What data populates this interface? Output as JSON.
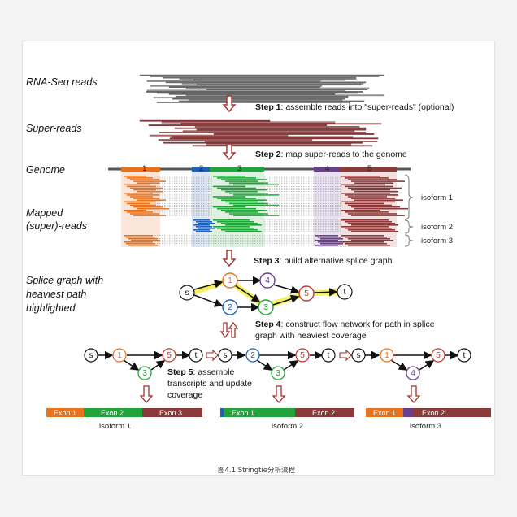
{
  "labels": {
    "rnaseq": "RNA-Seq reads",
    "superreads": "Super-reads",
    "genome": "Genome",
    "mapped1": "Mapped",
    "mapped2": "(super)-reads",
    "splice1": "Splice graph with",
    "splice2": "heaviest path",
    "splice3": "highlighted"
  },
  "steps": {
    "s1_head": "Step 1",
    "s1_text": ": assemble reads into \"super-reads\" (optional)",
    "s2_head": "Step 2",
    "s2_text": ": map super-reads to the genome",
    "s3_head": "Step 3",
    "s3_text": ": build alternative splice graph",
    "s4_head": "Step 4",
    "s4_text": ": construct flow network for path in splice",
    "s4_text2": "graph with heaviest coverage",
    "s5_head": "Step 5",
    "s5_text": ":  assemble",
    "s5_text2": "transcripts and update",
    "s5_text3": "coverage"
  },
  "isoform_labels": [
    "isoform 1",
    "isoform 2",
    "isoform 3"
  ],
  "exon_numbers": [
    "1",
    "2",
    "3",
    "4",
    "5"
  ],
  "nodes": {
    "s": "s",
    "t": "t",
    "n1": "1",
    "n2": "2",
    "n3": "3",
    "n4": "4",
    "n5": "5"
  },
  "transcripts": [
    {
      "exons": [
        {
          "label": "Exon 1",
          "color": "#e8731f"
        },
        {
          "label": "Exon 2",
          "color": "#22a43a"
        },
        {
          "label": "Exon 3",
          "color": "#8b3a3a"
        }
      ],
      "name": "isoform 1"
    },
    {
      "exons": [
        {
          "label": "Exon 1",
          "color": "#1f5fb4"
        },
        {
          "label": "Exon 2",
          "color": "#8b3a3a"
        }
      ],
      "name": "isoform 2"
    },
    {
      "exons": [
        {
          "label": "Exon 1",
          "color": "#e8731f"
        },
        {
          "label": "Exon 2",
          "color": "#6b3f8f"
        }
      ],
      "name": "isoform 3"
    }
  ],
  "colors": {
    "exon1": "#e8731f",
    "exon2": "#1f5fb4",
    "exon3": "#22a43a",
    "exon4": "#6b3f8f",
    "exon5": "#8b3a3a",
    "arrow": "#a0322a",
    "highlight": "#f3ee52"
  },
  "caption": "图4.1 Stringtie分析流程"
}
